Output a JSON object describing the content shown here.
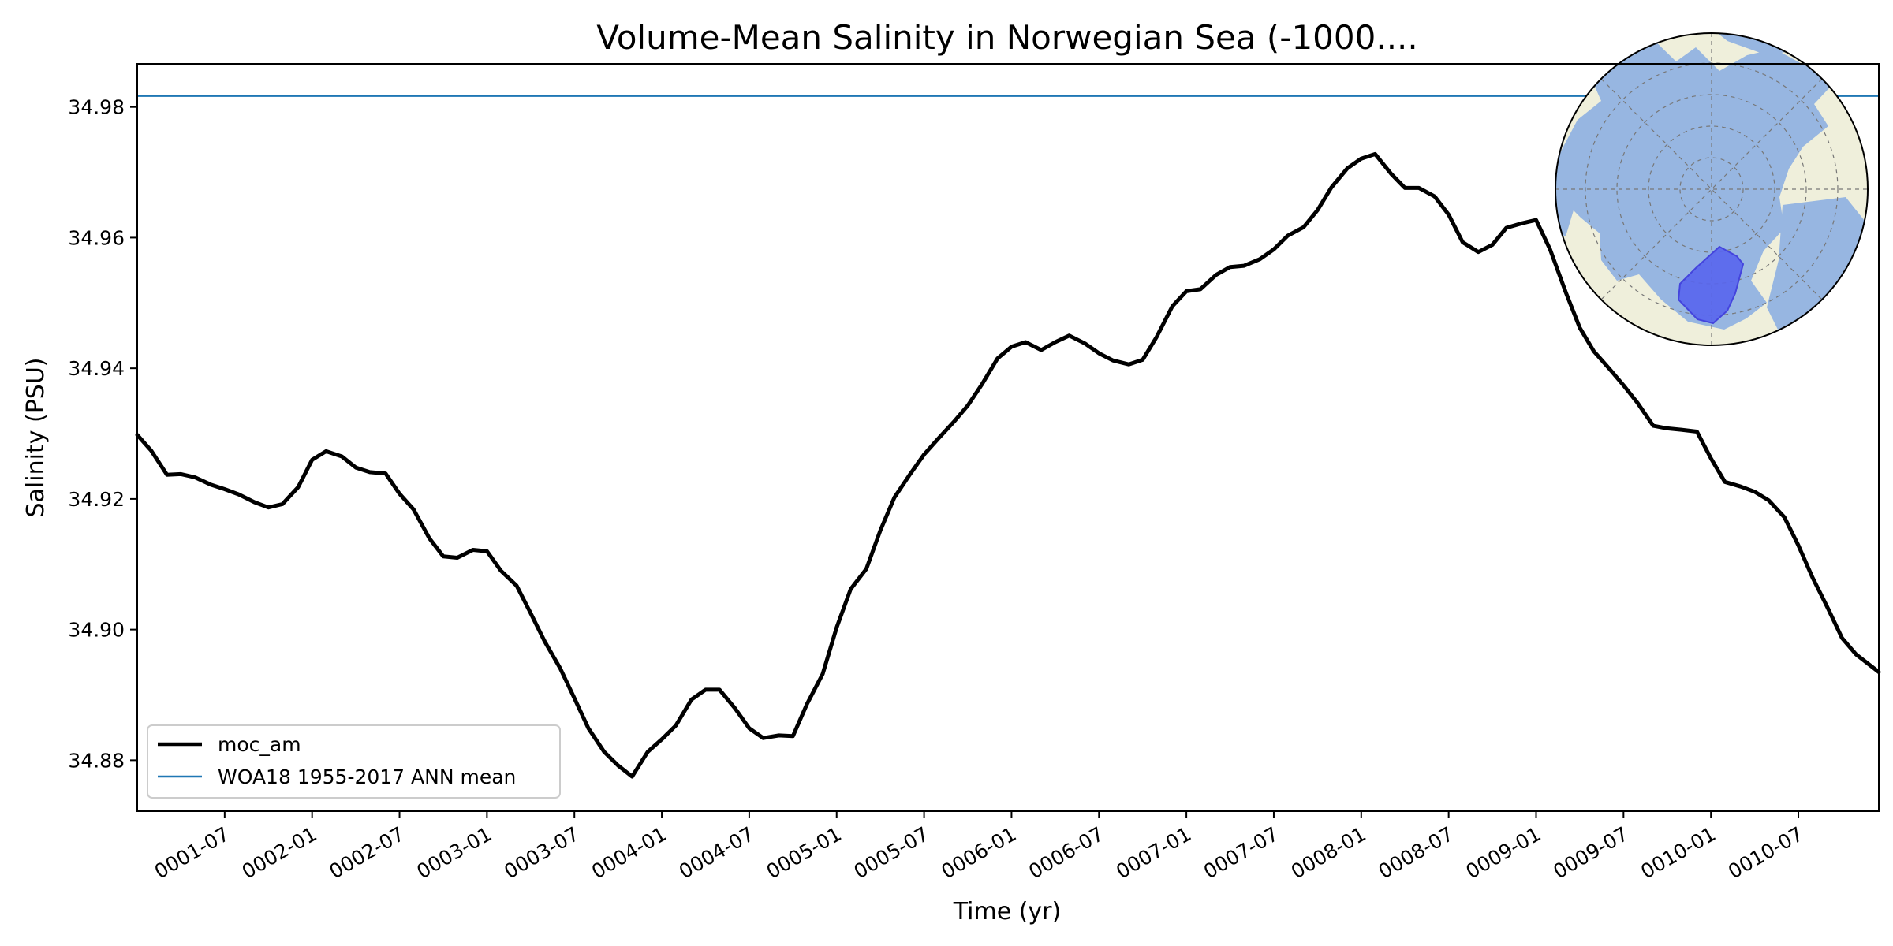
{
  "chart_data": {
    "type": "line",
    "title": "Volume-Mean Salinity in Norwegian Sea (-1000....",
    "xlabel": "Time (yr)",
    "ylabel": "Salinity (PSU)",
    "xlim": [
      1.0,
      10.96
    ],
    "ylim": [
      34.8722,
      34.9866
    ],
    "x_unit": "model years (year + (month-1)/12)",
    "x_ticks": [
      1.5,
      2.0,
      2.5,
      3.0,
      3.5,
      4.0,
      4.5,
      5.0,
      5.5,
      6.0,
      6.5,
      7.0,
      7.5,
      8.0,
      8.5,
      9.0,
      9.5,
      10.0,
      10.5
    ],
    "x_tick_labels": [
      "0001-07",
      "0002-01",
      "0002-07",
      "0003-01",
      "0003-07",
      "0004-01",
      "0004-07",
      "0005-01",
      "0005-07",
      "0006-01",
      "0006-07",
      "0007-01",
      "0007-07",
      "0008-01",
      "0008-07",
      "0009-01",
      "0009-07",
      "0010-01",
      "0010-07"
    ],
    "y_ticks": [
      34.88,
      34.9,
      34.92,
      34.94,
      34.96,
      34.98
    ],
    "y_tick_labels": [
      "34.88",
      "34.90",
      "34.92",
      "34.94",
      "34.96",
      "34.98"
    ],
    "legend_position": "lower-left",
    "series": [
      {
        "name": "moc_am",
        "color": "#000000",
        "style": "thick-solid",
        "x": [
          1.0,
          1.08,
          1.17,
          1.25,
          1.33,
          1.42,
          1.5,
          1.58,
          1.67,
          1.75,
          1.83,
          1.92,
          2.0,
          2.08,
          2.17,
          2.25,
          2.33,
          2.42,
          2.5,
          2.58,
          2.67,
          2.75,
          2.83,
          2.92,
          3.0,
          3.08,
          3.17,
          3.25,
          3.33,
          3.42,
          3.5,
          3.58,
          3.67,
          3.75,
          3.83,
          3.92,
          4.0,
          4.08,
          4.17,
          4.25,
          4.33,
          4.42,
          4.5,
          4.58,
          4.67,
          4.75,
          4.83,
          4.92,
          5.0,
          5.08,
          5.17,
          5.25,
          5.33,
          5.42,
          5.5,
          5.58,
          5.67,
          5.75,
          5.83,
          5.92,
          6.0,
          6.08,
          6.17,
          6.25,
          6.33,
          6.42,
          6.5,
          6.58,
          6.67,
          6.75,
          6.83,
          6.92,
          7.0,
          7.08,
          7.17,
          7.25,
          7.33,
          7.42,
          7.5,
          7.58,
          7.67,
          7.75,
          7.83,
          7.92,
          8.0,
          8.08,
          8.17,
          8.25,
          8.33,
          8.42,
          8.5,
          8.58,
          8.67,
          8.75,
          8.83,
          8.92,
          9.0,
          9.08,
          9.17,
          9.25,
          9.33,
          9.42,
          9.5,
          9.58,
          9.67,
          9.75,
          9.83,
          9.92,
          10.0,
          10.08,
          10.17,
          10.25,
          10.33,
          10.42,
          10.5,
          10.58,
          10.67,
          10.75,
          10.83,
          10.96
        ],
        "y": [
          34.9298,
          34.9274,
          34.9237,
          34.9238,
          34.9233,
          34.9222,
          34.9215,
          34.9207,
          34.9195,
          34.9187,
          34.9192,
          34.9218,
          34.926,
          34.9273,
          34.9265,
          34.9248,
          34.9241,
          34.9239,
          34.9208,
          34.9184,
          34.914,
          34.9112,
          34.911,
          34.9122,
          34.912,
          34.909,
          34.9067,
          34.9025,
          34.8982,
          34.894,
          34.8895,
          34.8849,
          34.8813,
          34.8792,
          34.8775,
          34.8813,
          34.8832,
          34.8853,
          34.8893,
          34.8908,
          34.8908,
          34.8879,
          34.8849,
          34.8834,
          34.8838,
          34.8837,
          34.8886,
          34.8932,
          34.9003,
          34.9062,
          34.9093,
          34.9152,
          34.9202,
          34.9238,
          34.9268,
          34.9292,
          34.9318,
          34.9343,
          34.9375,
          34.9415,
          34.9433,
          34.944,
          34.9428,
          34.944,
          34.945,
          34.9438,
          34.9423,
          34.9412,
          34.9406,
          34.9413,
          34.9448,
          34.9495,
          34.9518,
          34.9521,
          34.9543,
          34.9555,
          34.9557,
          34.9567,
          34.9582,
          34.9603,
          34.9616,
          34.9642,
          34.9677,
          34.9706,
          34.9721,
          34.9728,
          34.9698,
          34.9676,
          34.9676,
          34.9663,
          34.9635,
          34.9593,
          34.9578,
          34.9589,
          34.9615,
          34.9622,
          34.9627,
          34.9582,
          34.9516,
          34.9462,
          34.9426,
          34.9399,
          34.9374,
          34.9347,
          34.9312,
          34.9308,
          34.9306,
          34.9303,
          34.9262,
          34.9226,
          34.9219,
          34.9211,
          34.9198,
          34.9172,
          34.9129,
          34.908,
          34.9032,
          34.8987,
          34.8962,
          34.8935
        ]
      },
      {
        "name": "WOA18 1955-2017 ANN mean",
        "color": "#1f77b4",
        "style": "thin-solid",
        "x": [
          1.0,
          10.96
        ],
        "y": [
          34.9817,
          34.9817
        ]
      }
    ],
    "inset_map": {
      "type": "polar-stereographic",
      "land_color": "#efefdb",
      "ocean_color": "#97b6e1",
      "region_color": "#5865ee"
    }
  }
}
